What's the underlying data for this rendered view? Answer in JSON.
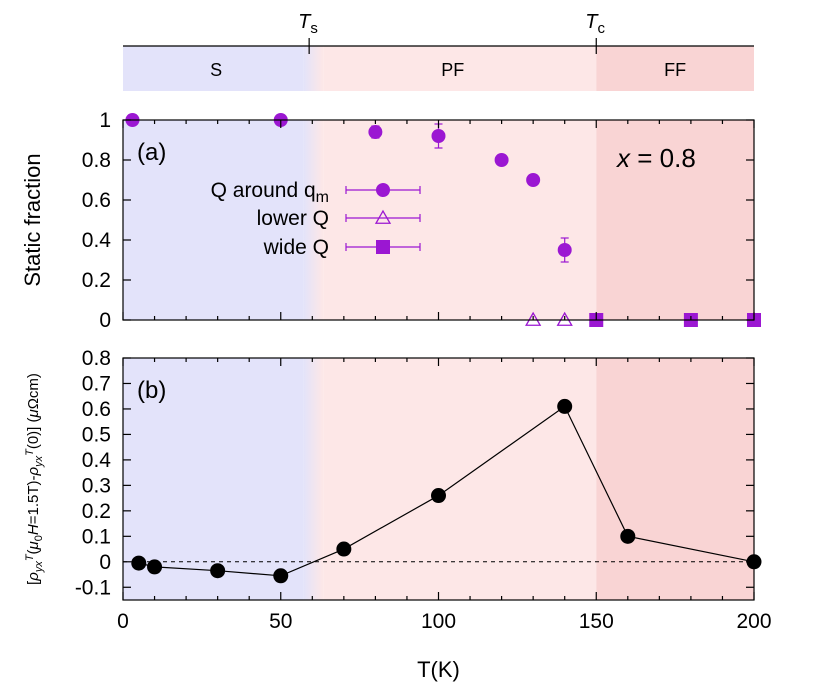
{
  "phase_bar": {
    "markers": [
      {
        "label_main": "T",
        "label_sub": "s",
        "x": 59
      },
      {
        "label_main": "T",
        "label_sub": "c",
        "x": 150
      }
    ],
    "regions": [
      {
        "label": "S",
        "from": 0,
        "to": 59,
        "color": "#e3e3fa"
      },
      {
        "label": "PF",
        "from": 59,
        "to": 150,
        "color": "#fde7e7"
      },
      {
        "label": "FF",
        "from": 150,
        "to": 200,
        "color": "#f9d4d4"
      }
    ]
  },
  "chart_data": [
    {
      "id": "a",
      "type": "scatter",
      "panel_label": "(a)",
      "annotation": {
        "var": "x",
        "rest": " = 0.8"
      },
      "ylabel": "Static fraction",
      "xlim": [
        0,
        200
      ],
      "ylim": [
        0,
        1
      ],
      "yticks": [
        "0",
        "0.2",
        "0.4",
        "0.6",
        "0.8",
        "1"
      ],
      "ytick_values": [
        0,
        0.2,
        0.4,
        0.6,
        0.8,
        1
      ],
      "legend_position": "left",
      "color": "#9b17d2",
      "series": [
        {
          "name_main": "Q around q",
          "name_sub": "m",
          "marker": "filled-circle",
          "points": [
            {
              "x": 3,
              "y": 1.0,
              "err": 0
            },
            {
              "x": 50,
              "y": 1.0,
              "err": 0
            },
            {
              "x": 80,
              "y": 0.94,
              "err": 0.03
            },
            {
              "x": 100,
              "y": 0.92,
              "err": 0.06
            },
            {
              "x": 120,
              "y": 0.8,
              "err": 0
            },
            {
              "x": 130,
              "y": 0.7,
              "err": 0
            },
            {
              "x": 140,
              "y": 0.35,
              "err": 0.06
            }
          ]
        },
        {
          "name_main": "lower Q",
          "name_sub": "",
          "marker": "open-triangle",
          "points": [
            {
              "x": 130,
              "y": 0.0,
              "err": 0
            },
            {
              "x": 140,
              "y": 0.0,
              "err": 0
            }
          ]
        },
        {
          "name_main": "wide Q",
          "name_sub": "",
          "marker": "filled-square",
          "points": [
            {
              "x": 150,
              "y": 0.0,
              "err": 0
            },
            {
              "x": 180,
              "y": 0.0,
              "err": 0
            },
            {
              "x": 200,
              "y": 0.0,
              "err": 0
            }
          ]
        }
      ]
    },
    {
      "id": "b",
      "type": "line",
      "panel_label": "(b)",
      "ylabel": "[ρyxT(μ0H=1.5T)-ρyxT(0)] (μΩcm)",
      "xlabel": "T(K)",
      "xlim": [
        0,
        200
      ],
      "ylim": [
        -0.15,
        0.8
      ],
      "xticks": [
        "0",
        "50",
        "100",
        "150",
        "200"
      ],
      "xtick_values": [
        0,
        50,
        100,
        150,
        200
      ],
      "yticks": [
        "-0.1",
        "0",
        "0.1",
        "0.2",
        "0.3",
        "0.4",
        "0.5",
        "0.6",
        "0.7",
        "0.8"
      ],
      "ytick_values": [
        -0.1,
        0,
        0.1,
        0.2,
        0.3,
        0.4,
        0.5,
        0.6,
        0.7,
        0.8
      ],
      "zero_line": "dashed",
      "color": "#000000",
      "series": [
        {
          "x": [
            5,
            10,
            30,
            50,
            70,
            100,
            140,
            160,
            200
          ],
          "y": [
            -0.005,
            -0.02,
            -0.035,
            -0.055,
            0.05,
            0.26,
            0.61,
            0.1,
            0.0
          ]
        }
      ]
    }
  ]
}
